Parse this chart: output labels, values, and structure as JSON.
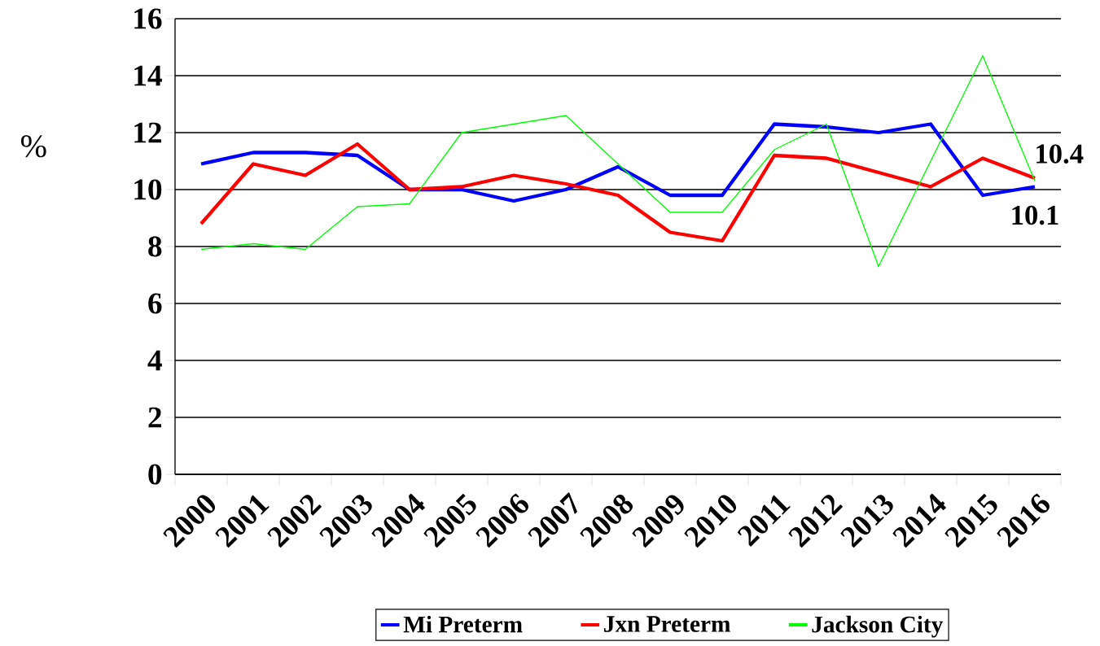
{
  "chart_data": {
    "type": "line",
    "ylabel": "%",
    "categories": [
      "2000",
      "2001",
      "2002",
      "2003",
      "2004",
      "2005",
      "2006",
      "2007",
      "2008",
      "2009",
      "2010",
      "2011",
      "2012",
      "2013",
      "2014",
      "2015",
      "2016"
    ],
    "series": [
      {
        "name": "Mi Preterm",
        "color": "#0000ff",
        "values": [
          10.9,
          11.3,
          11.3,
          11.2,
          10.0,
          10.0,
          9.6,
          10.0,
          10.8,
          9.8,
          9.8,
          12.3,
          12.2,
          12.0,
          12.3,
          9.8,
          10.1
        ],
        "value_labels": [
          null,
          null,
          null,
          null,
          null,
          null,
          null,
          null,
          null,
          null,
          null,
          null,
          null,
          null,
          null,
          null,
          "10.1"
        ]
      },
      {
        "name": "Jxn Preterm",
        "color": "#ff0000",
        "values": [
          8.8,
          10.9,
          10.5,
          11.6,
          10.0,
          10.1,
          10.5,
          10.2,
          9.8,
          8.5,
          8.2,
          11.2,
          11.1,
          10.6,
          10.1,
          11.1,
          10.4
        ],
        "value_labels": [
          null,
          null,
          null,
          null,
          null,
          null,
          null,
          null,
          null,
          null,
          null,
          null,
          null,
          null,
          null,
          null,
          "10.4"
        ]
      },
      {
        "name": "Jackson City",
        "color": "#00ff00",
        "values": [
          7.9,
          8.1,
          7.9,
          9.4,
          9.5,
          12.0,
          12.3,
          12.6,
          10.9,
          9.2,
          9.2,
          11.4,
          12.3,
          7.3,
          11.0,
          14.7,
          10.3
        ]
      }
    ],
    "ylim": [
      0,
      16
    ],
    "yticks": [
      0,
      2,
      4,
      6,
      8,
      10,
      12,
      14,
      16
    ],
    "grid": "y",
    "legend": "bottom",
    "marker": "none",
    "line_style": "solid"
  }
}
